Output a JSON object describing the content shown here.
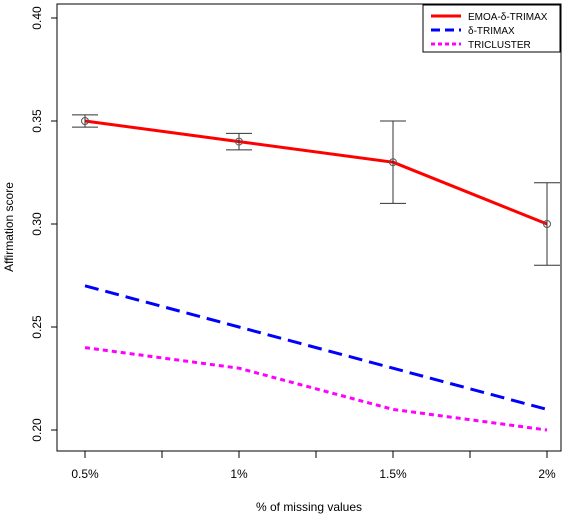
{
  "chart_data": {
    "type": "line",
    "title": "",
    "xlabel": "% of missing values",
    "ylabel": "Affirmation score",
    "categories": [
      "0.5%",
      "1%",
      "1.5%",
      "2%"
    ],
    "ylim": [
      0.2,
      0.4
    ],
    "yticks": [
      "0.20",
      "0.25",
      "0.30",
      "0.35",
      "0.40"
    ],
    "legend_position": "top-right",
    "grid": false,
    "series": [
      {
        "name": "EMOA-δ-TRIMAX",
        "values": [
          0.35,
          0.34,
          0.33,
          0.3
        ],
        "error_low": [
          0.347,
          0.336,
          0.31,
          0.28
        ],
        "error_high": [
          0.353,
          0.344,
          0.35,
          0.32
        ],
        "color": "#ff0000",
        "style": "solid"
      },
      {
        "name": "δ-TRIMAX",
        "values": [
          0.27,
          0.25,
          0.23,
          0.21
        ],
        "color": "#0000ff",
        "style": "dashed"
      },
      {
        "name": "TRICLUSTER",
        "values": [
          0.24,
          0.23,
          0.21,
          0.2
        ],
        "color": "#ff00ff",
        "style": "dotted"
      }
    ]
  }
}
